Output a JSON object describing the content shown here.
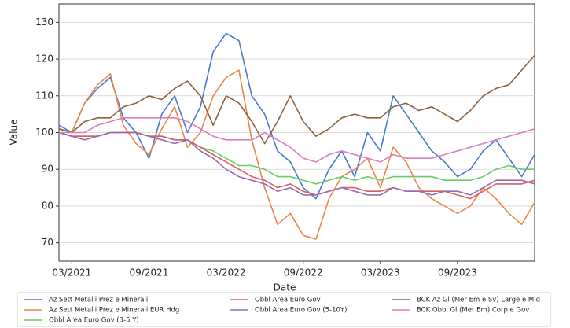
{
  "chart_data": {
    "type": "line",
    "x_label": "Date",
    "y_label": "Value",
    "x": [
      "2021-02",
      "2021-03",
      "2021-04",
      "2021-05",
      "2021-06",
      "2021-07",
      "2021-08",
      "2021-09",
      "2021-10",
      "2021-11",
      "2021-12",
      "2022-01",
      "2022-02",
      "2022-03",
      "2022-04",
      "2022-05",
      "2022-06",
      "2022-07",
      "2022-08",
      "2022-09",
      "2022-10",
      "2022-11",
      "2022-12",
      "2023-01",
      "2023-02",
      "2023-03",
      "2023-04",
      "2023-05",
      "2023-06",
      "2023-07",
      "2023-08",
      "2023-09",
      "2023-10",
      "2023-11",
      "2023-12",
      "2024-01",
      "2024-02",
      "2024-03"
    ],
    "xlim": [
      "2021-02",
      "2024-03"
    ],
    "xticks": [
      {
        "value": "2021-03",
        "label": "03/2021"
      },
      {
        "value": "2021-09",
        "label": "09/2021"
      },
      {
        "value": "2022-03",
        "label": "03/2022"
      },
      {
        "value": "2022-09",
        "label": "09/2022"
      },
      {
        "value": "2023-03",
        "label": "03/2023"
      },
      {
        "value": "2023-09",
        "label": "09/2023"
      }
    ],
    "ylim": [
      65,
      135
    ],
    "yticks": [
      70,
      80,
      90,
      100,
      110,
      120,
      130
    ],
    "grid": true,
    "legend": "bottom",
    "series": [
      {
        "name": "Az Sett Metalli Prez e Minerali",
        "color": "#4878d0",
        "values": [
          102,
          100,
          108,
          112,
          115,
          104,
          100,
          93,
          105,
          110,
          100,
          107,
          122,
          127,
          125,
          110,
          105,
          95,
          92,
          85,
          82,
          90,
          95,
          88,
          100,
          95,
          110,
          105,
          100,
          95,
          92,
          88,
          90,
          95,
          98,
          93,
          88,
          94
        ]
      },
      {
        "name": "Az Sett Metalli Prez e Minerali EUR Hdg",
        "color": "#ee854a",
        "values": [
          101,
          100,
          108,
          113,
          116,
          102,
          97,
          94,
          101,
          107,
          96,
          100,
          110,
          115,
          117,
          98,
          85,
          75,
          78,
          72,
          71,
          82,
          88,
          90,
          93,
          85,
          96,
          92,
          85,
          82,
          80,
          78,
          80,
          85,
          82,
          78,
          75,
          81
        ]
      },
      {
        "name": "Obbl Area Euro Gov (3-5 Y)",
        "color": "#6acc64",
        "values": [
          100,
          99,
          99,
          99,
          100,
          100,
          100,
          99,
          99,
          98,
          98,
          96,
          95,
          93,
          91,
          91,
          90,
          88,
          88,
          87,
          86,
          87,
          88,
          87,
          88,
          87,
          88,
          88,
          88,
          88,
          87,
          87,
          87,
          88,
          90,
          91,
          90,
          90
        ]
      },
      {
        "name": "Obbl Area Euro Gov",
        "color": "#d65f5f",
        "values": [
          100,
          99,
          99,
          99,
          100,
          100,
          100,
          99,
          99,
          98,
          98,
          96,
          94,
          92,
          90,
          88,
          87,
          85,
          86,
          84,
          83,
          84,
          85,
          85,
          84,
          84,
          85,
          84,
          84,
          84,
          84,
          83,
          82,
          84,
          86,
          86,
          86,
          87
        ]
      },
      {
        "name": "Obbl Area Euro Gov (5-10Y)",
        "color": "#956cb4",
        "values": [
          100,
          99,
          98,
          99,
          100,
          100,
          100,
          99,
          98,
          97,
          98,
          95,
          93,
          90,
          88,
          87,
          86,
          84,
          85,
          83,
          83,
          84,
          85,
          84,
          83,
          83,
          85,
          84,
          84,
          83,
          84,
          84,
          83,
          85,
          87,
          87,
          87,
          86
        ]
      },
      {
        "name": "BCK Az Gl (Mer Em e Sv) Large e Mid",
        "color": "#8c613c",
        "values": [
          101,
          100,
          103,
          104,
          104,
          107,
          108,
          110,
          109,
          112,
          114,
          110,
          102,
          110,
          108,
          103,
          97,
          103,
          110,
          103,
          99,
          101,
          104,
          105,
          104,
          104,
          107,
          108,
          106,
          107,
          105,
          103,
          106,
          110,
          112,
          113,
          117,
          121
        ]
      },
      {
        "name": "BCK Obbl Gl (Mer Em) Corp e Gov",
        "color": "#dc7ec0",
        "values": [
          100,
          100,
          100,
          102,
          103,
          104,
          104,
          104,
          104,
          104,
          103,
          101,
          99,
          98,
          98,
          98,
          100,
          98,
          96,
          93,
          92,
          94,
          95,
          94,
          93,
          92,
          94,
          93,
          93,
          93,
          94,
          95,
          96,
          97,
          98,
          99,
          100,
          101
        ]
      }
    ]
  }
}
